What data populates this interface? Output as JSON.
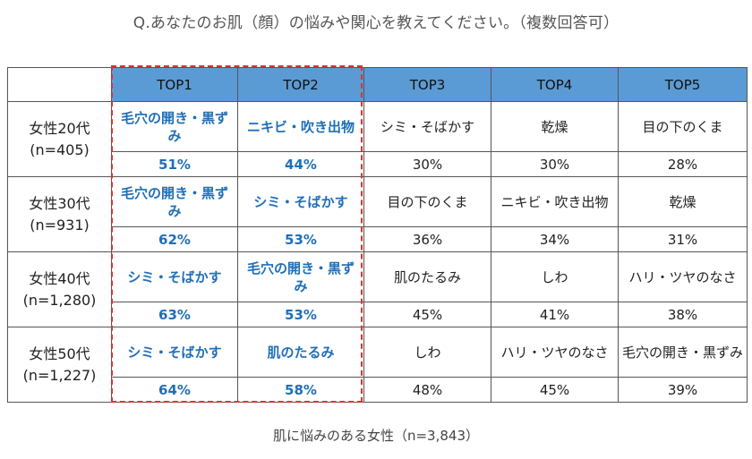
{
  "title": "Q.あなたのお肌（顔）の悩みや関心を教えてください。（複数回答可）",
  "footer": "肌に悩みのある女性（n=3,843）",
  "colors": {
    "header_bg": "#5b9bd5",
    "highlight_text": "#1f6fb7",
    "highlight_border": "#e0302a"
  },
  "chart_data": {
    "type": "table",
    "columns": [
      "TOP1",
      "TOP2",
      "TOP3",
      "TOP4",
      "TOP5"
    ],
    "rows": [
      {
        "group": "女性20代",
        "n": "(n=405)",
        "items": [
          "毛穴の開き・黒ずみ",
          "ニキビ・吹き出物",
          "シミ・そばかす",
          "乾燥",
          "目の下のくま"
        ],
        "percents": [
          "51%",
          "44%",
          "30%",
          "30%",
          "28%"
        ]
      },
      {
        "group": "女性30代",
        "n": "(n=931)",
        "items": [
          "毛穴の開き・黒ずみ",
          "シミ・そばかす",
          "目の下のくま",
          "ニキビ・吹き出物",
          "乾燥"
        ],
        "percents": [
          "62%",
          "53%",
          "36%",
          "34%",
          "31%"
        ]
      },
      {
        "group": "女性40代",
        "n": "(n=1,280)",
        "items": [
          "シミ・そばかす",
          "毛穴の開き・黒ずみ",
          "肌のたるみ",
          "しわ",
          "ハリ・ツヤのなさ"
        ],
        "percents": [
          "63%",
          "53%",
          "45%",
          "41%",
          "38%"
        ]
      },
      {
        "group": "女性50代",
        "n": "(n=1,227)",
        "items": [
          "シミ・そばかす",
          "肌のたるみ",
          "しわ",
          "ハリ・ツヤのなさ",
          "毛穴の開き・黒ずみ"
        ],
        "percents": [
          "64%",
          "58%",
          "48%",
          "45%",
          "39%"
        ]
      }
    ]
  }
}
